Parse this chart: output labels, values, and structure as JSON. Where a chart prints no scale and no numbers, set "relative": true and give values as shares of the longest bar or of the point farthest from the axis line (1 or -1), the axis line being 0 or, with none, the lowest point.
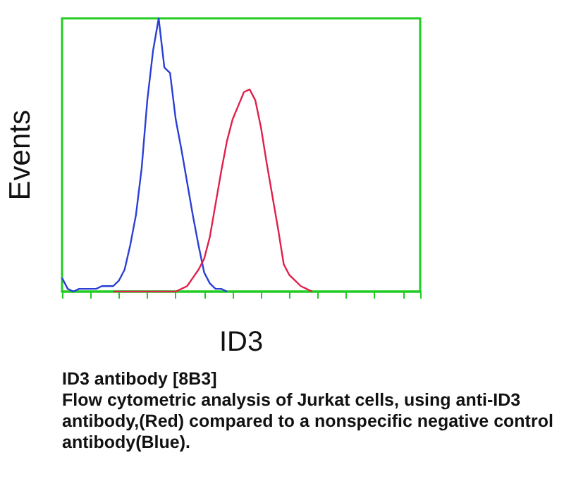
{
  "chart_data": {
    "type": "line",
    "relative": true,
    "xlabel": "ID3",
    "ylabel": "Events",
    "marker": "none",
    "categories": [
      null,
      null,
      null,
      null,
      null,
      null,
      null,
      null,
      null,
      null,
      null,
      null,
      null,
      null,
      null,
      null,
      null,
      null,
      null,
      null,
      null,
      null,
      null,
      null,
      null,
      null,
      null,
      null,
      null,
      null,
      null,
      null,
      null,
      null,
      null,
      null,
      null,
      null,
      null,
      null,
      null,
      null,
      null,
      null,
      null,
      null,
      null,
      null,
      null,
      null,
      null,
      null,
      null,
      null,
      null,
      null,
      null,
      null,
      null,
      null,
      null,
      null,
      null,
      null
    ],
    "series": [
      {
        "color": "#2a3fd6",
        "values": [
          0.05,
          0.01,
          0,
          0.01,
          0.01,
          0.01,
          0.01,
          0.02,
          0.02,
          0.02,
          0.04,
          0.08,
          0.17,
          0.28,
          0.45,
          0.7,
          0.88,
          1,
          0.82,
          0.8,
          0.63,
          0.52,
          0.4,
          0.28,
          0.17,
          0.07,
          0.03,
          0.01,
          0.01,
          0,
          null,
          null,
          null,
          null,
          null,
          null,
          null,
          null,
          null,
          null,
          null,
          null,
          null,
          null,
          null,
          null,
          null,
          null,
          null,
          null,
          null,
          null,
          null,
          null,
          null,
          null,
          null,
          null,
          null,
          null,
          null,
          null,
          null,
          null
        ]
      },
      {
        "color": "#e0204a",
        "values": [
          null,
          null,
          null,
          null,
          null,
          null,
          null,
          null,
          null,
          0,
          0,
          0,
          0,
          0,
          0,
          0,
          0,
          0,
          0,
          0,
          0,
          0.01,
          0.02,
          0.05,
          0.08,
          0.12,
          0.2,
          0.32,
          0.44,
          0.55,
          0.63,
          0.68,
          0.73,
          0.74,
          0.7,
          0.6,
          0.47,
          0.35,
          0.23,
          0.1,
          0.06,
          0.04,
          0.02,
          0.01,
          0,
          null,
          null,
          null,
          null,
          null,
          null,
          null,
          null,
          null,
          null,
          null,
          null,
          null,
          null,
          null,
          null,
          null,
          null,
          null
        ]
      }
    ],
    "annotations": [
      "ID3 antibody [8B3]",
      "Flow cytometric analysis of Jurkat cells, using anti-ID3 antibody,(Red) compared to a nonspecific negative control antibody(Blue)."
    ]
  }
}
